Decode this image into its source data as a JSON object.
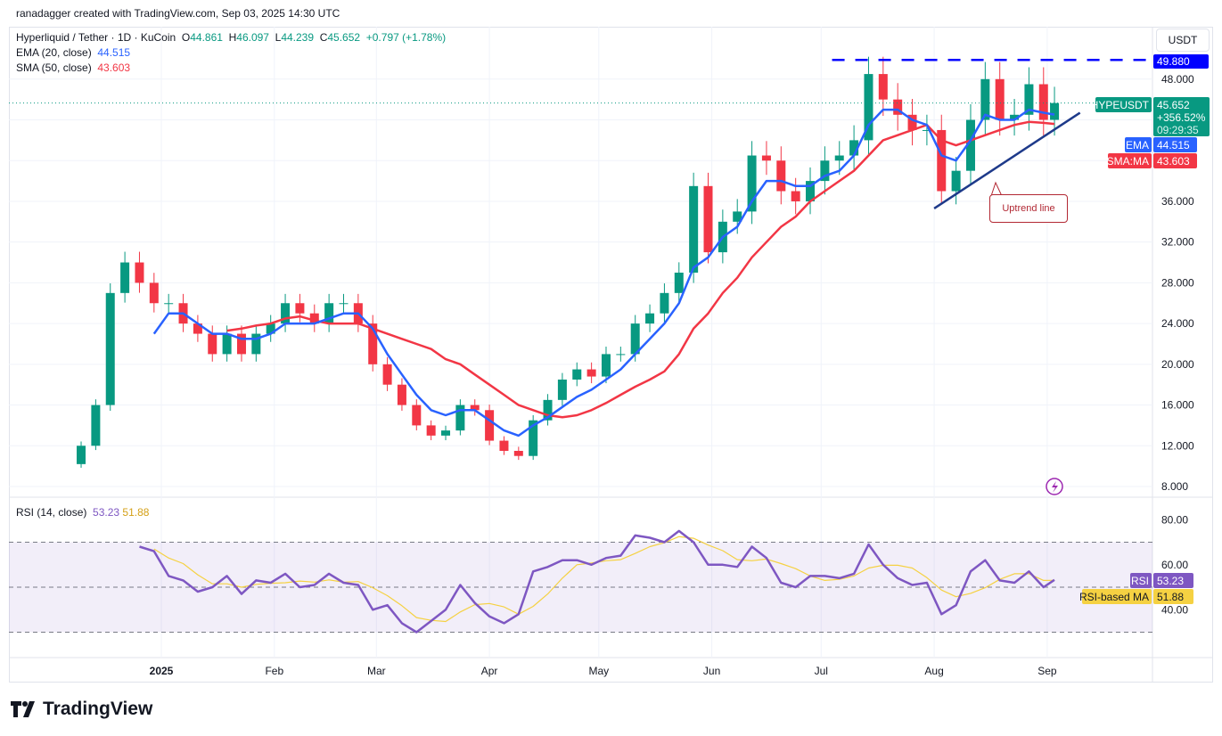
{
  "credit": "ranadagger created with TradingView.com, Sep 03, 2025 14:30 UTC",
  "legend": {
    "symbol": "Hyperliquid / Tether · 1D · KuCoin",
    "o_label": "O",
    "o": "44.861",
    "h_label": "H",
    "h": "46.097",
    "l_label": "L",
    "l": "44.239",
    "c_label": "C",
    "c": "45.652",
    "change": "+0.797 (+1.78%)",
    "ema_label": "EMA (20, close)",
    "ema": "44.515",
    "sma_label": "SMA (50, close)",
    "sma": "43.603",
    "rsi_label": "RSI (14, close)",
    "rsi": "53.23",
    "rsi_ma": "51.88"
  },
  "axis": {
    "currency": "USDT",
    "price_ticks": [
      "48.000",
      "36.000",
      "32.000",
      "28.000",
      "24.000",
      "20.000",
      "16.000",
      "12.000",
      "8.000"
    ],
    "rsi_ticks": [
      "80.00",
      "60.00",
      "40.00"
    ],
    "time_labels": [
      "2025",
      "Feb",
      "Mar",
      "Apr",
      "May",
      "Jun",
      "Jul",
      "Aug",
      "Sep"
    ]
  },
  "price_labels": {
    "resistance": "49.880",
    "symbol": "HYPEUSDT",
    "last": "45.652",
    "change_pct": "+356.52%",
    "countdown": "09:29:35",
    "ema_tag": "EMA",
    "ema": "44.515",
    "sma_tag": "SMA:MA",
    "sma": "43.603",
    "rsi_tag": "RSI",
    "rsi": "53.23",
    "rsi_ma_tag": "RSI-based MA",
    "rsi_ma": "51.88"
  },
  "annotation": {
    "uptrend": "Uptrend line"
  },
  "brand": "TradingView",
  "colors": {
    "up": "#089981",
    "down": "#f23645",
    "ema": "#2962ff",
    "sma": "#f23645",
    "rsi": "#7e57c2",
    "rsi_ma": "#f5d142",
    "resistance": "#0000ff",
    "trendline": "#1e3a8a"
  },
  "chart_data": {
    "type": "candlestick",
    "note_precision": "approximate, sampled every 4 days",
    "x": [
      "2024-12-10",
      "2024-12-14",
      "2024-12-18",
      "2024-12-22",
      "2024-12-26",
      "2024-12-30",
      "2025-01-03",
      "2025-01-07",
      "2025-01-11",
      "2025-01-15",
      "2025-01-19",
      "2025-01-23",
      "2025-01-27",
      "2025-01-31",
      "2025-02-04",
      "2025-02-08",
      "2025-02-12",
      "2025-02-16",
      "2025-02-20",
      "2025-02-24",
      "2025-02-28",
      "2025-03-04",
      "2025-03-08",
      "2025-03-12",
      "2025-03-16",
      "2025-03-20",
      "2025-03-24",
      "2025-03-28",
      "2025-04-01",
      "2025-04-05",
      "2025-04-09",
      "2025-04-13",
      "2025-04-17",
      "2025-04-21",
      "2025-04-25",
      "2025-04-29",
      "2025-05-03",
      "2025-05-07",
      "2025-05-11",
      "2025-05-15",
      "2025-05-19",
      "2025-05-23",
      "2025-05-27",
      "2025-05-31",
      "2025-06-04",
      "2025-06-08",
      "2025-06-12",
      "2025-06-16",
      "2025-06-20",
      "2025-06-24",
      "2025-06-28",
      "2025-07-02",
      "2025-07-06",
      "2025-07-10",
      "2025-07-14",
      "2025-07-18",
      "2025-07-22",
      "2025-07-26",
      "2025-07-30",
      "2025-08-03",
      "2025-08-07",
      "2025-08-11",
      "2025-08-15",
      "2025-08-19",
      "2025-08-23",
      "2025-08-27",
      "2025-08-31",
      "2025-09-03"
    ],
    "close": [
      12,
      16,
      27,
      30,
      28,
      26,
      26,
      24,
      23,
      21,
      23,
      21,
      23,
      24,
      26,
      25,
      24,
      26,
      26,
      24,
      20,
      18,
      16,
      14,
      13,
      13.5,
      16,
      15.5,
      12.5,
      11.5,
      11,
      14.5,
      16.5,
      18.5,
      19.5,
      18.8,
      21,
      21,
      24,
      25,
      27,
      29,
      37.5,
      31,
      34,
      35,
      40.5,
      40,
      37,
      36,
      38,
      40,
      40.5,
      42,
      48.5,
      46,
      44.5,
      43,
      43,
      37,
      39,
      44,
      48,
      44,
      44.5,
      47.5,
      44,
      45.652
    ],
    "ema20": [
      null,
      null,
      null,
      null,
      null,
      23,
      25,
      25,
      24,
      23,
      23,
      22.5,
      22.5,
      23,
      24,
      24,
      24,
      24.5,
      25,
      25,
      23.5,
      21,
      19,
      17,
      15.5,
      15,
      15.5,
      15.5,
      14.5,
      13.5,
      13,
      14,
      14.8,
      15.8,
      16.8,
      17.5,
      18.5,
      19.5,
      21,
      22.5,
      24,
      26,
      29.5,
      30.5,
      32.5,
      33.5,
      36,
      38,
      38,
      37.5,
      37.5,
      38.5,
      39,
      40.5,
      43.5,
      45,
      45,
      44,
      43.5,
      40.5,
      40,
      42,
      44.5,
      44,
      44,
      45,
      44.7,
      44.515
    ],
    "sma50": [
      null,
      null,
      null,
      null,
      null,
      null,
      null,
      null,
      null,
      null,
      23.3,
      23.5,
      23.8,
      24,
      24.5,
      24.7,
      24.3,
      24,
      24,
      24,
      23.5,
      23,
      22.5,
      22,
      21.5,
      20.5,
      20,
      19,
      18,
      17,
      16,
      15.5,
      15,
      14.8,
      15,
      15.5,
      16.2,
      17,
      17.8,
      18.5,
      19.3,
      21,
      23.5,
      25,
      27,
      28.5,
      30.5,
      32,
      33.5,
      34.5,
      36,
      37,
      38,
      39,
      40.5,
      42,
      42.5,
      43,
      43.5,
      42,
      41.5,
      42,
      42.5,
      43,
      43.5,
      43.8,
      43.7,
      43.603
    ],
    "rsi14": [
      null,
      null,
      null,
      null,
      68,
      66,
      55,
      53,
      48,
      50,
      55,
      47,
      53,
      52,
      56,
      50,
      51,
      56,
      52,
      51,
      40,
      42,
      34,
      30,
      35,
      40,
      51,
      43,
      37,
      34,
      38,
      57,
      59,
      62,
      62,
      60,
      63,
      64,
      73,
      72,
      70,
      75,
      70,
      60,
      60,
      59,
      68,
      63,
      52,
      50,
      55,
      55,
      54,
      56,
      69,
      60,
      54,
      51,
      52,
      38,
      42,
      57,
      62,
      53,
      52,
      57,
      50,
      53.23
    ],
    "resistance_level": 49.88,
    "resistance_from": "2025-07-04",
    "trendline": [
      {
        "date": "2025-08-01",
        "price": 35.3
      },
      {
        "date": "2025-09-10",
        "price": 44.7
      }
    ],
    "price_range": [
      8,
      52
    ],
    "rsi_range": [
      20,
      90
    ],
    "rsi_bands": [
      70,
      50,
      30
    ],
    "grid": true,
    "ylabel": "USDT"
  }
}
